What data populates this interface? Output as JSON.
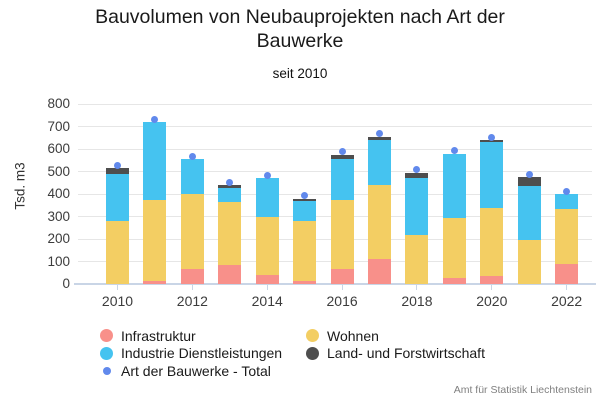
{
  "header": {
    "title": "Bauvolumen von Neubauprojekten nach Art der Bauwerke",
    "subtitle": "seit 2010"
  },
  "footer": {
    "source": "Amt für Statistik Liechtenstein"
  },
  "chart_data": {
    "type": "bar",
    "stacked": true,
    "title": "Bauvolumen von Neubauprojekten nach Art der Bauwerke",
    "subtitle": "seit 2010",
    "ylabel": "Tsd. m3",
    "ylim": [
      0,
      800
    ],
    "yticks": [
      0,
      100,
      200,
      300,
      400,
      500,
      600,
      700,
      800
    ],
    "grid": true,
    "legend_position": "bottom-left",
    "categories": [
      "2010",
      "2011",
      "2012",
      "2013",
      "2014",
      "2015",
      "2016",
      "2017",
      "2018",
      "2019",
      "2020",
      "2021",
      "2022"
    ],
    "xtick_labels": [
      "2010",
      "2012",
      "2014",
      "2016",
      "2018",
      "2020",
      "2022"
    ],
    "series": [
      {
        "name": "Infrastruktur",
        "color": "#F8908A",
        "values": [
          0,
          15,
          65,
          85,
          40,
          15,
          65,
          110,
          0,
          25,
          35,
          0,
          90
        ]
      },
      {
        "name": "Wohnen",
        "color": "#F3CE63",
        "values": [
          280,
          360,
          335,
          280,
          260,
          265,
          310,
          330,
          220,
          270,
          305,
          195,
          245
        ]
      },
      {
        "name": "Industrie Dienstleistungen",
        "color": "#45C3F0",
        "values": [
          210,
          345,
          155,
          60,
          170,
          90,
          180,
          200,
          250,
          285,
          290,
          240,
          65
        ]
      },
      {
        "name": "Land- und Forstwirtschaft",
        "color": "#4E4E4E",
        "values": [
          25,
          0,
          0,
          15,
          0,
          10,
          20,
          15,
          25,
          0,
          10,
          40,
          0
        ]
      }
    ],
    "total_marker": {
      "name": "Art der Bauwerke - Total",
      "color": "#6189EC",
      "values": [
        515,
        720,
        555,
        440,
        470,
        380,
        575,
        655,
        495,
        580,
        640,
        475,
        400
      ]
    },
    "legend_columns": [
      [
        {
          "label": "Infrastruktur",
          "marker": "circle",
          "color": "#F8908A"
        },
        {
          "label": "Industrie Dienstleistungen",
          "marker": "circle",
          "color": "#45C3F0"
        },
        {
          "label": "Art der Bauwerke - Total",
          "marker": "dot",
          "color": "#6189EC"
        }
      ],
      [
        {
          "label": "Wohnen",
          "marker": "circle",
          "color": "#F3CE63"
        },
        {
          "label": "Land- und Forstwirtschaft",
          "marker": "circle",
          "color": "#4E4E4E"
        }
      ]
    ],
    "source": "Amt für Statistik Liechtenstein"
  }
}
